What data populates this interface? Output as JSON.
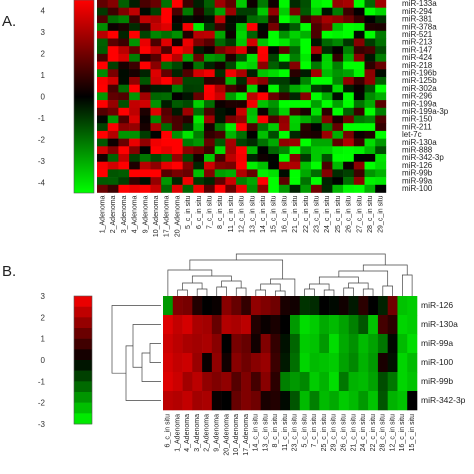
{
  "chart_data": [
    {
      "type": "heatmap",
      "panel_label": "A.",
      "colorbar_ticks": [
        "4",
        "3",
        "2",
        "1",
        "0",
        "-1",
        "-2",
        "-3",
        "-4"
      ],
      "colorbar_range": [
        -4.5,
        4.5
      ],
      "rows": [
        "miR-133a",
        "miR-294",
        "miR-381",
        "miR-378a",
        "miR-521",
        "miR-213",
        "miR-147",
        "miR-424",
        "miR-218",
        "miR-196b",
        "miR-125b",
        "miR-302a",
        "miR-296",
        "miR-199a",
        "miR-199a-3p",
        "miR-150",
        "miR-211",
        "let-7c",
        "miR-130a",
        "miR-888",
        "miR-342-3p",
        "miR-126",
        "miR-99b",
        "miR-99a",
        "miR-100"
      ],
      "columns": [
        "1_Adenoma",
        "2_Adenoma",
        "3_Adenoma",
        "4_Adenoma",
        "9_Adenoma",
        "10_Adenoma",
        "17_Adenoma",
        "20_Adenoma",
        "5_c_in situ",
        "6_c_in situ",
        "7_c_in situ",
        "8_c_in situ",
        "11_c_in situ",
        "12_c_in situ",
        "13_c_in situ",
        "14_c_in situ",
        "15_c_in situ",
        "16_c_in situ",
        "21_c_in situ",
        "22_c_in situ",
        "23_c_in situ",
        "24_c_in situ",
        "25_c_in situ",
        "26_c_in situ",
        "27_c_in situ",
        "28_c_in situ",
        "29_c_in situ"
      ]
    },
    {
      "type": "heatmap",
      "panel_label": "B.",
      "colorbar_ticks": [
        "3",
        "2",
        "1",
        "0",
        "-1",
        "-2",
        "-3"
      ],
      "colorbar_range": [
        -3,
        3
      ],
      "rows": [
        "miR-126",
        "miR-130a",
        "miR-99a",
        "miR-100",
        "miR-99b",
        "miR-342-3p"
      ],
      "columns": [
        "6_c_in situ",
        "1_Adenoma",
        "4_Adenoma",
        "3_Adenoma",
        "2_Adenoma",
        "9_Adenoma",
        "20_Adenoma",
        "10_Adenoma",
        "17_Adenoma",
        "14_c_in situ",
        "13_c_in situ",
        "8_c_in situ",
        "11_c_in situ",
        "23_c_in situ",
        "5_c_in situ",
        "7_c_in situ",
        "25_c_in situ",
        "29_c_in situ",
        "26_c_in situ",
        "21_c_in situ",
        "24_c_in situ",
        "22_c_in situ",
        "28_c_in situ",
        "12_c_in situ",
        "16_c_in situ",
        "15_c_in situ"
      ],
      "values": [
        [
          -1.8,
          1.5,
          1.4,
          0.4,
          0.0,
          0.1,
          1.6,
          1.2,
          0.6,
          1.7,
          1.5,
          1.3,
          0.3,
          0.2,
          -0.6,
          -0.5,
          0.0,
          -0.1,
          0.2,
          -0.3,
          0.5,
          0.0,
          -0.4,
          1.3,
          -2.3,
          -2.4
        ],
        [
          2.6,
          2.3,
          2.5,
          2.0,
          1.9,
          1.2,
          2.1,
          2.0,
          2.2,
          0.4,
          0.1,
          0.3,
          0.0,
          -1.8,
          -2.6,
          -2.4,
          -2.0,
          -2.2,
          -1.9,
          -1.5,
          -1.0,
          -2.3,
          0.8,
          0.5,
          -2.5,
          -2.4
        ],
        [
          2.4,
          2.2,
          2.0,
          1.9,
          2.0,
          1.6,
          0.0,
          1.4,
          1.2,
          0.2,
          1.5,
          0.6,
          -0.2,
          -1.2,
          -2.4,
          -2.3,
          -1.8,
          -2.6,
          -2.0,
          -1.7,
          -2.2,
          -1.9,
          -1.4,
          -0.1,
          -2.2,
          -2.6
        ],
        [
          2.5,
          2.3,
          2.4,
          1.8,
          0.1,
          1.7,
          0.2,
          1.6,
          1.3,
          1.6,
          1.8,
          0.7,
          -0.3,
          -1.3,
          -2.5,
          -2.2,
          -2.3,
          -2.4,
          -1.9,
          -1.6,
          -2.1,
          -1.8,
          0.3,
          -0.2,
          -2.5,
          -2.2
        ],
        [
          2.6,
          2.4,
          1.9,
          2.2,
          1.7,
          1.5,
          1.7,
          1.0,
          1.5,
          0.8,
          1.6,
          0.5,
          -1.5,
          -1.8,
          -1.6,
          -2.4,
          -2.1,
          -2.6,
          -1.4,
          -2.1,
          -2.2,
          -1.9,
          -0.9,
          -1.4,
          -2.5,
          -2.3
        ],
        [
          2.2,
          2.1,
          2.3,
          1.9,
          2.0,
          0.1,
          0.0,
          1.2,
          1.5,
          1.3,
          0.3,
          0.4,
          -0.1,
          -1.0,
          -2.2,
          -1.5,
          -2.2,
          -2.0,
          -2.4,
          -2.2,
          -1.8,
          -2.3,
          -1.0,
          -2.1,
          -2.3,
          0.0
        ]
      ]
    }
  ]
}
